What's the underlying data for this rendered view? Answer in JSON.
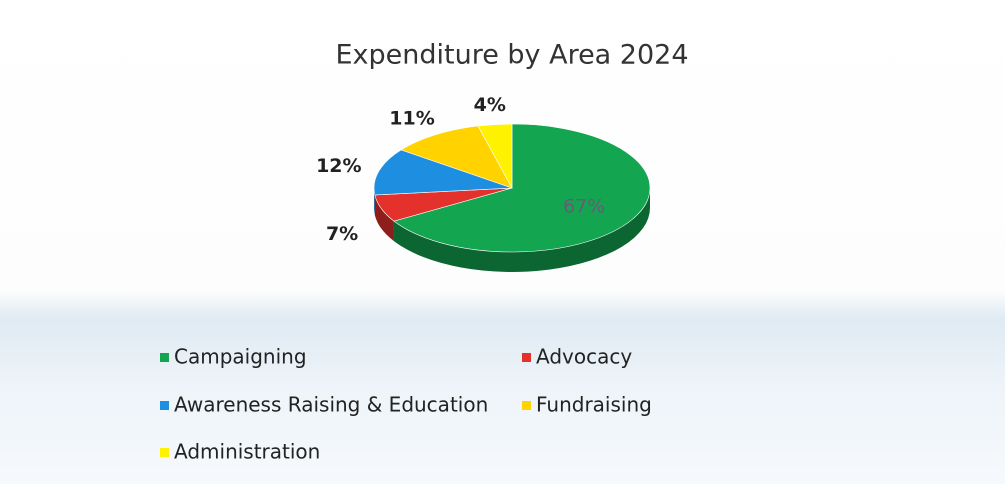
{
  "chart_data": {
    "type": "pie",
    "title": "Expenditure by Area 2024",
    "categories": [
      "Campaigning",
      "Advocacy",
      "Awareness Raising & Education",
      "Fundraising",
      "Administration"
    ],
    "values": [
      67,
      7,
      12,
      11,
      4
    ],
    "value_labels": [
      "67%",
      "7%",
      "12%",
      "11%",
      "4%"
    ],
    "colors": [
      "#14a550",
      "#e5312b",
      "#1e8fe0",
      "#ffd200",
      "#fff200"
    ],
    "legend": "bottom"
  }
}
